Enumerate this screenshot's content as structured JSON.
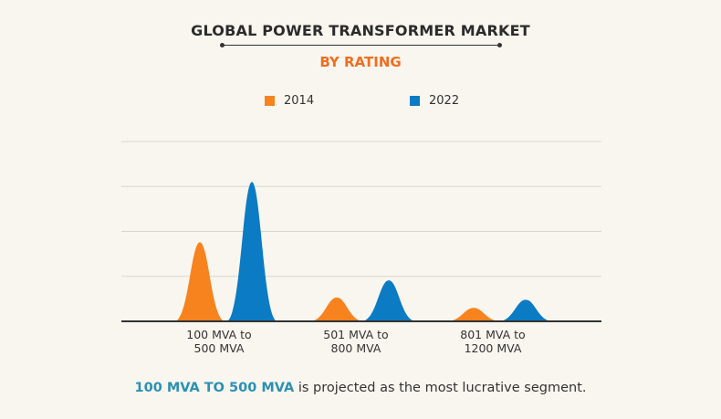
{
  "header": {
    "title": "GLOBAL POWER TRANSFORMER MARKET",
    "subtitle": "BY RATING"
  },
  "chart_data": {
    "type": "area",
    "title": "GLOBAL POWER TRANSFORMER MARKET",
    "subtitle": "BY RATING",
    "categories": [
      [
        "100 MVA to",
        "500 MVA"
      ],
      [
        "501 MVA to",
        "800 MVA"
      ],
      [
        "801 MVA to",
        "1200 MVA"
      ]
    ],
    "series": [
      {
        "name": "2014",
        "color": "#f7831e",
        "values": [
          1.76,
          0.53,
          0.3
        ]
      },
      {
        "name": "2022",
        "color": "#0b7bc4",
        "values": [
          3.1,
          0.91,
          0.48
        ]
      }
    ],
    "ylim": [
      0,
      4
    ],
    "y_tick_labels_shown": false,
    "grid": true,
    "legend_placement": "top",
    "xlabel": "",
    "ylabel": ""
  },
  "footer": {
    "highlight": "100 MVA TO 500 MVA",
    "text": " is projected as the most lucrative segment.",
    "highlight_color": "#2a91b4"
  }
}
